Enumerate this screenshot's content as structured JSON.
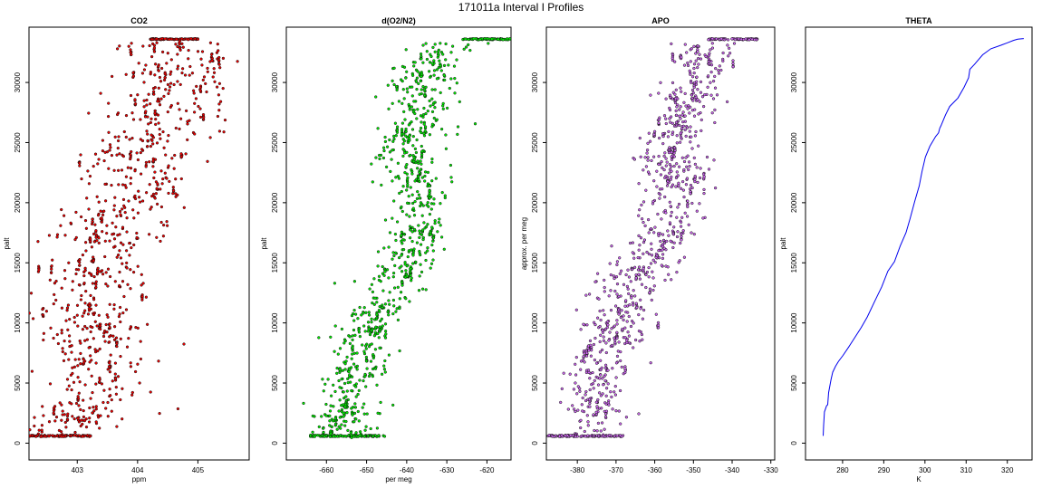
{
  "figure": {
    "title": "171011a   Interval I Profiles"
  },
  "chart_data": [
    {
      "type": "scatter",
      "title": "CO2",
      "xlabel": "ppm",
      "ylabel": "palt",
      "xlim": [
        402.2,
        405.85
      ],
      "ylim": [
        -1400,
        34600
      ],
      "xticks": [
        403,
        404,
        405
      ],
      "yticks": [
        0,
        5000,
        10000,
        15000,
        20000,
        25000,
        30000
      ],
      "marker_color": "#ee0000",
      "mode": "points",
      "profile": [
        [
          402.6,
          600
        ],
        [
          403.1,
          3000
        ],
        [
          403.4,
          6000
        ],
        [
          403.3,
          9000
        ],
        [
          403.3,
          12000
        ],
        [
          403.4,
          15000
        ],
        [
          403.6,
          18000
        ],
        [
          403.9,
          21000
        ],
        [
          404.0,
          24000
        ],
        [
          404.3,
          27000
        ],
        [
          404.7,
          30000
        ],
        [
          404.9,
          32000
        ],
        [
          404.6,
          33600
        ]
      ],
      "spread": [
        [
          0,
          0.45
        ],
        [
          5000,
          0.45
        ],
        [
          15000,
          0.5
        ],
        [
          25000,
          0.55
        ],
        [
          33600,
          0.5
        ]
      ],
      "seed": 11
    },
    {
      "type": "scatter",
      "title": "d(O2/N2)",
      "xlabel": "per meg",
      "ylabel": "palt",
      "xlim": [
        -670,
        -614
      ],
      "ylim": [
        -1400,
        34600
      ],
      "xticks": [
        -660,
        -650,
        -640,
        -630,
        -620
      ],
      "yticks": [
        0,
        5000,
        10000,
        15000,
        20000,
        25000,
        30000
      ],
      "marker_color": "#00ee00",
      "mode": "points",
      "profile": [
        [
          -655,
          600
        ],
        [
          -655,
          3000
        ],
        [
          -652,
          6000
        ],
        [
          -650,
          9000
        ],
        [
          -646,
          12000
        ],
        [
          -640,
          15000
        ],
        [
          -637,
          18000
        ],
        [
          -637,
          21000
        ],
        [
          -640,
          24000
        ],
        [
          -636,
          27000
        ],
        [
          -637,
          30000
        ],
        [
          -633,
          32000
        ],
        [
          -630,
          33200
        ],
        [
          -620,
          33600
        ]
      ],
      "spread": [
        [
          0,
          4
        ],
        [
          15000,
          4
        ],
        [
          33600,
          4
        ]
      ],
      "seed": 23
    },
    {
      "type": "scatter",
      "title": "APO",
      "xlabel": "",
      "ylabel": "approx. per meg",
      "xlim": [
        -388,
        -329
      ],
      "ylim": [
        -1400,
        34600
      ],
      "xticks": [
        -380,
        -370,
        -360,
        -350,
        -340,
        -330
      ],
      "yticks": [
        0,
        5000,
        10000,
        15000,
        20000,
        25000,
        30000
      ],
      "marker_color": "#cc66ee",
      "mode": "points",
      "profile": [
        [
          -378,
          600
        ],
        [
          -376,
          3000
        ],
        [
          -375,
          6000
        ],
        [
          -370,
          9000
        ],
        [
          -369,
          12000
        ],
        [
          -362,
          15000
        ],
        [
          -357,
          18000
        ],
        [
          -354,
          21000
        ],
        [
          -357,
          24000
        ],
        [
          -353,
          27000
        ],
        [
          -350,
          30000
        ],
        [
          -348,
          32000
        ],
        [
          -346,
          33400
        ],
        [
          -340,
          33600
        ]
      ],
      "spread": [
        [
          0,
          4
        ],
        [
          15000,
          4.5
        ],
        [
          33600,
          4
        ]
      ],
      "seed": 37
    },
    {
      "type": "line",
      "title": "THETA",
      "xlabel": "K",
      "ylabel": "palt",
      "xlim": [
        271,
        326
      ],
      "ylim": [
        -1400,
        34600
      ],
      "xticks": [
        280,
        290,
        300,
        310,
        320
      ],
      "yticks": [
        0,
        5000,
        10000,
        15000,
        20000,
        25000,
        30000
      ],
      "line_color": "#0000ee",
      "mode": "line",
      "points": [
        [
          275.3,
          600
        ],
        [
          275.4,
          1500
        ],
        [
          275.6,
          2600
        ],
        [
          276.1,
          3100
        ],
        [
          276.4,
          3200
        ],
        [
          276.6,
          4200
        ],
        [
          277.2,
          5300
        ],
        [
          277.6,
          5900
        ],
        [
          278.3,
          6400
        ],
        [
          279.0,
          6800
        ],
        [
          280.1,
          7300
        ],
        [
          281.5,
          8000
        ],
        [
          283.0,
          8800
        ],
        [
          284.5,
          9600
        ],
        [
          286.0,
          10500
        ],
        [
          287.8,
          11800
        ],
        [
          289.5,
          13000
        ],
        [
          291.0,
          14300
        ],
        [
          292.6,
          15100
        ],
        [
          294.0,
          16400
        ],
        [
          295.4,
          17500
        ],
        [
          296.4,
          18700
        ],
        [
          297.5,
          20100
        ],
        [
          298.6,
          21400
        ],
        [
          299.3,
          22600
        ],
        [
          300.1,
          23800
        ],
        [
          301.2,
          24700
        ],
        [
          302.6,
          25500
        ],
        [
          303.3,
          25800
        ],
        [
          303.6,
          26200
        ],
        [
          303.9,
          26400
        ],
        [
          305.0,
          27300
        ],
        [
          306.0,
          28000
        ],
        [
          308.0,
          28700
        ],
        [
          309.5,
          29600
        ],
        [
          310.6,
          30400
        ],
        [
          310.9,
          31100
        ],
        [
          312.0,
          31500
        ],
        [
          314.0,
          32300
        ],
        [
          316.0,
          32800
        ],
        [
          318.5,
          33100
        ],
        [
          320.0,
          33300
        ],
        [
          321.5,
          33500
        ],
        [
          322.5,
          33600
        ],
        [
          324.0,
          33650
        ]
      ]
    }
  ]
}
